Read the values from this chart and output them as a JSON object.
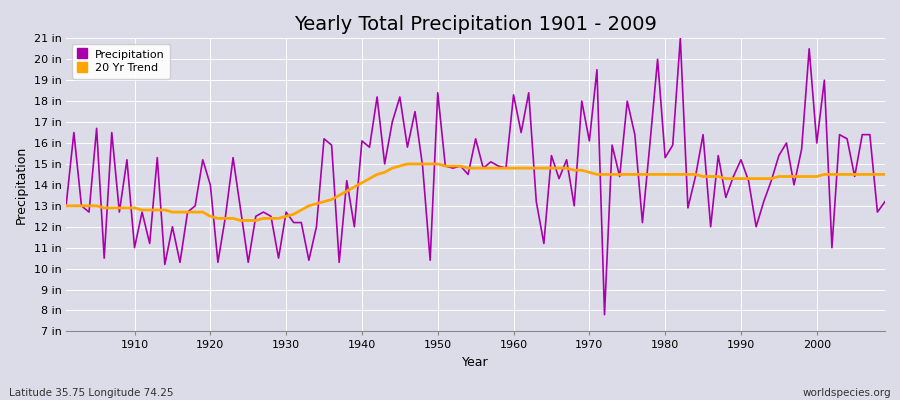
{
  "title": "Yearly Total Precipitation 1901 - 2009",
  "xlabel": "Year",
  "ylabel": "Precipitation",
  "subtitle": "Latitude 35.75 Longitude 74.25",
  "watermark": "worldspecies.org",
  "ylim": [
    7,
    21
  ],
  "yticks": [
    7,
    8,
    9,
    10,
    11,
    12,
    13,
    14,
    15,
    16,
    17,
    18,
    19,
    20,
    21
  ],
  "ytick_labels": [
    "7 in",
    "8 in",
    "9 in",
    "10 in",
    "11 in",
    "12 in",
    "13 in",
    "14 in",
    "15 in",
    "16 in",
    "17 in",
    "18 in",
    "19 in",
    "20 in",
    "21 in"
  ],
  "precip_color": "#AA00AA",
  "trend_color": "#FFA500",
  "fig_bg_color": "#dcdce8",
  "plot_bg_color": "#dcdce8",
  "grid_color": "#ffffff",
  "years": [
    1901,
    1902,
    1903,
    1904,
    1905,
    1906,
    1907,
    1908,
    1909,
    1910,
    1911,
    1912,
    1913,
    1914,
    1915,
    1916,
    1917,
    1918,
    1919,
    1920,
    1921,
    1922,
    1923,
    1924,
    1925,
    1926,
    1927,
    1928,
    1929,
    1930,
    1931,
    1932,
    1933,
    1934,
    1935,
    1936,
    1937,
    1938,
    1939,
    1940,
    1941,
    1942,
    1943,
    1944,
    1945,
    1946,
    1947,
    1948,
    1949,
    1950,
    1951,
    1952,
    1953,
    1954,
    1955,
    1956,
    1957,
    1958,
    1959,
    1960,
    1961,
    1962,
    1963,
    1964,
    1965,
    1966,
    1967,
    1968,
    1969,
    1970,
    1971,
    1972,
    1973,
    1974,
    1975,
    1976,
    1977,
    1978,
    1979,
    1980,
    1981,
    1982,
    1983,
    1984,
    1985,
    1986,
    1987,
    1988,
    1989,
    1990,
    1991,
    1992,
    1993,
    1994,
    1995,
    1996,
    1997,
    1998,
    1999,
    2000,
    2001,
    2002,
    2003,
    2004,
    2005,
    2006,
    2007,
    2008,
    2009
  ],
  "precip": [
    13.1,
    16.5,
    13.0,
    12.7,
    16.7,
    10.5,
    16.5,
    12.7,
    15.2,
    11.0,
    12.7,
    11.2,
    15.3,
    10.2,
    12.0,
    10.3,
    12.7,
    13.0,
    15.2,
    14.0,
    10.3,
    12.5,
    15.3,
    12.8,
    10.3,
    12.5,
    12.7,
    12.5,
    10.5,
    12.7,
    12.2,
    12.2,
    10.4,
    12.0,
    16.2,
    15.9,
    10.3,
    14.2,
    12.0,
    16.1,
    15.8,
    18.2,
    15.0,
    17.0,
    18.2,
    15.8,
    17.5,
    14.9,
    10.4,
    18.4,
    14.9,
    14.8,
    14.9,
    14.5,
    16.2,
    14.8,
    15.1,
    14.9,
    14.8,
    18.3,
    16.5,
    18.4,
    13.2,
    11.2,
    15.4,
    14.3,
    15.2,
    13.0,
    18.0,
    16.1,
    19.5,
    7.8,
    15.9,
    14.4,
    18.0,
    16.4,
    12.2,
    16.0,
    20.0,
    15.3,
    15.9,
    21.0,
    12.9,
    14.4,
    16.4,
    12.0,
    15.4,
    13.4,
    14.4,
    15.2,
    14.2,
    12.0,
    13.2,
    14.2,
    15.4,
    16.0,
    14.0,
    15.7,
    20.5,
    16.0,
    19.0,
    11.0,
    16.4,
    16.2,
    14.4,
    16.4,
    16.4,
    12.7,
    13.2
  ],
  "trend": [
    13.0,
    13.0,
    13.0,
    13.0,
    13.0,
    12.9,
    12.9,
    12.9,
    12.9,
    12.9,
    12.8,
    12.8,
    12.8,
    12.8,
    12.7,
    12.7,
    12.7,
    12.7,
    12.7,
    12.5,
    12.4,
    12.4,
    12.4,
    12.3,
    12.3,
    12.3,
    12.4,
    12.4,
    12.4,
    12.5,
    12.6,
    12.8,
    13.0,
    13.1,
    13.2,
    13.3,
    13.5,
    13.7,
    13.9,
    14.1,
    14.3,
    14.5,
    14.6,
    14.8,
    14.9,
    15.0,
    15.0,
    15.0,
    15.0,
    15.0,
    14.9,
    14.9,
    14.9,
    14.8,
    14.8,
    14.8,
    14.8,
    14.8,
    14.8,
    14.8,
    14.8,
    14.8,
    14.8,
    14.8,
    14.8,
    14.8,
    14.8,
    14.7,
    14.7,
    14.6,
    14.5,
    14.5,
    14.5,
    14.5,
    14.5,
    14.5,
    14.5,
    14.5,
    14.5,
    14.5,
    14.5,
    14.5,
    14.5,
    14.5,
    14.4,
    14.4,
    14.4,
    14.3,
    14.3,
    14.3,
    14.3,
    14.3,
    14.3,
    14.3,
    14.4,
    14.4,
    14.4,
    14.4,
    14.4,
    14.4,
    14.5,
    14.5,
    14.5,
    14.5,
    14.5,
    14.5,
    14.5,
    14.5,
    14.5
  ],
  "xlim": [
    1901,
    2009
  ],
  "xticks": [
    1910,
    1920,
    1930,
    1940,
    1950,
    1960,
    1970,
    1980,
    1990,
    2000
  ],
  "title_fontsize": 14,
  "axis_label_fontsize": 9,
  "tick_fontsize": 8,
  "legend_fontsize": 8,
  "subtitle_fontsize": 7.5,
  "watermark_fontsize": 7.5
}
